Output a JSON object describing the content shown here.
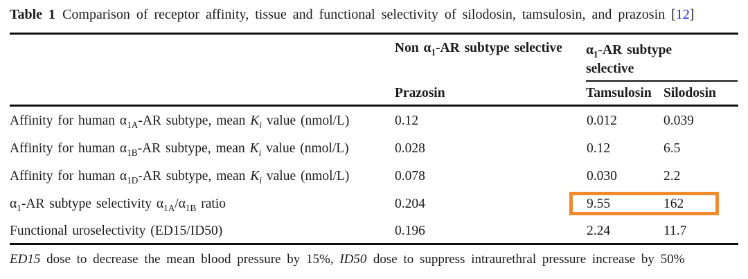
{
  "colors": {
    "text": "#1b1b1b",
    "rule": "#111111",
    "highlight_border": "#f08a2a",
    "citation": "#2323cc",
    "background": "#ffffff"
  },
  "caption": {
    "segments": [
      {
        "t": "Table 1",
        "b": true
      },
      {
        "t": " Comparison of receptor affinity, tissue and functional selectivity of silodosin, tamsulosin, and prazosin "
      },
      {
        "t": "["
      },
      {
        "t": "12",
        "c": "#2323cc"
      },
      {
        "t": "]"
      }
    ]
  },
  "header": {
    "group_non_selective": [
      {
        "t": "Non α"
      },
      {
        "t": "1",
        "sub": true
      },
      {
        "t": "-AR subtype selective"
      }
    ],
    "group_selective": [
      {
        "t": "α"
      },
      {
        "t": "1",
        "sub": true
      },
      {
        "t": "-AR subtype selective"
      }
    ],
    "columns": [
      "Prazosin",
      "Tamsulosin",
      "Silodosin"
    ]
  },
  "rows": [
    {
      "label": [
        {
          "t": "Affinity for human α"
        },
        {
          "t": "1A",
          "sub": true
        },
        {
          "t": "-AR subtype, mean "
        },
        {
          "t": "K",
          "i": true
        },
        {
          "t": "i",
          "sub": true,
          "i": true
        },
        {
          "t": " value (nmol/L)"
        }
      ],
      "prazosin": "0.12",
      "tamsulosin": "0.012",
      "silodosin": "0.039",
      "highlighted": false
    },
    {
      "label": [
        {
          "t": "Affinity for human α"
        },
        {
          "t": "1B",
          "sub": true
        },
        {
          "t": "-AR subtype, mean "
        },
        {
          "t": "K",
          "i": true
        },
        {
          "t": "i",
          "sub": true,
          "i": true
        },
        {
          "t": " value (nmol/L)"
        }
      ],
      "prazosin": "0.028",
      "tamsulosin": "0.12",
      "silodosin": "6.5",
      "highlighted": false
    },
    {
      "label": [
        {
          "t": "Affinity for human α"
        },
        {
          "t": "1D",
          "sub": true
        },
        {
          "t": "-AR subtype, mean "
        },
        {
          "t": "K",
          "i": true
        },
        {
          "t": "i",
          "sub": true,
          "i": true
        },
        {
          "t": " value (nmol/L)"
        }
      ],
      "prazosin": "0.078",
      "tamsulosin": "0.030",
      "silodosin": "2.2",
      "highlighted": false
    },
    {
      "label": [
        {
          "t": "α"
        },
        {
          "t": "1",
          "sub": true
        },
        {
          "t": "-AR subtype selectivity α"
        },
        {
          "t": "1A",
          "sub": true
        },
        {
          "t": "/α"
        },
        {
          "t": "1B",
          "sub": true
        },
        {
          "t": " ratio"
        }
      ],
      "prazosin": "0.204",
      "tamsulosin": "9.55",
      "silodosin": "162",
      "highlighted": true
    },
    {
      "label": [
        {
          "t": "Functional uroselectivity (ED15/ID50)"
        }
      ],
      "prazosin": "0.196",
      "tamsulosin": "2.24",
      "silodosin": "11.7",
      "highlighted": false
    }
  ],
  "highlight": {
    "color": "#f08a2a"
  },
  "footnote": {
    "segments": [
      {
        "t": "ED15",
        "i": true
      },
      {
        "t": " dose to decrease the mean blood pressure by 15%, "
      },
      {
        "t": "ID50",
        "i": true
      },
      {
        "t": " dose to suppress intraurethral pressure increase by 50%"
      }
    ]
  }
}
